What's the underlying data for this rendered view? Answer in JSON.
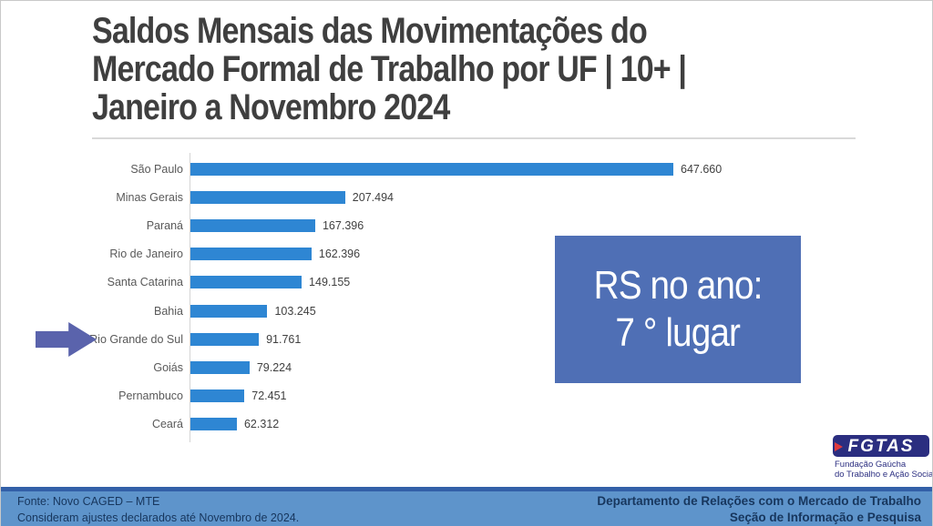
{
  "slide": {
    "title_lines": [
      "Saldos Mensais das Movimentações do",
      "Mercado Formal de Trabalho por UF | 10+ |",
      "Janeiro a Novembro 2024"
    ],
    "callout": {
      "line1": "RS no ano:",
      "line2": "7 ° lugar"
    },
    "footer": {
      "source_line1": "Fonte: Novo CAGED – MTE",
      "source_line2": "Consideram ajustes declarados até Novembro de 2024.",
      "dept_line1": "Departamento de Relações com o Mercado de Trabalho",
      "dept_line2": "Seção de Informação e Pesquisa"
    },
    "logo": {
      "acronym": "FGTAS",
      "sub_line1": "Fundação Gaúcha",
      "sub_line2": "do Trabalho e Ação Social"
    },
    "colors": {
      "bar_blue": "#2e86d3",
      "callout_blue": "#4f6fb5",
      "arrow_indigo": "#5a63ac",
      "footer_blue": "#5e94cb",
      "footer_stripe": "#3360a8",
      "footer_text_navy": "#17365d",
      "logo_indigo": "#2b2e80",
      "logo_red": "#e03a3e",
      "title_gray": "#3f3f3f"
    }
  },
  "chart_data": {
    "type": "bar",
    "orientation": "horizontal",
    "title": "Saldos Mensais das Movimentações do Mercado Formal de Trabalho por UF | 10+ | Janeiro a Novembro 2024",
    "xlabel": "",
    "ylabel": "",
    "categories": [
      "São Paulo",
      "Minas Gerais",
      "Paraná",
      "Rio de Janeiro",
      "Santa Catarina",
      "Bahia",
      "Rio Grande do Sul",
      "Goiás",
      "Pernambuco",
      "Ceará"
    ],
    "values": [
      647660,
      207494,
      167396,
      162396,
      149155,
      103245,
      91761,
      79224,
      72451,
      62312
    ],
    "value_labels": [
      "647.660",
      "207.494",
      "167.396",
      "162.396",
      "149.155",
      "103.245",
      "91.761",
      "79.224",
      "72.451",
      "62.312"
    ],
    "highlighted_category": "Rio Grande do Sul",
    "annotation": "RS no ano: 7° lugar",
    "grid": false,
    "legend": false,
    "data_labels": true,
    "xlim": [
      0,
      700000
    ]
  }
}
